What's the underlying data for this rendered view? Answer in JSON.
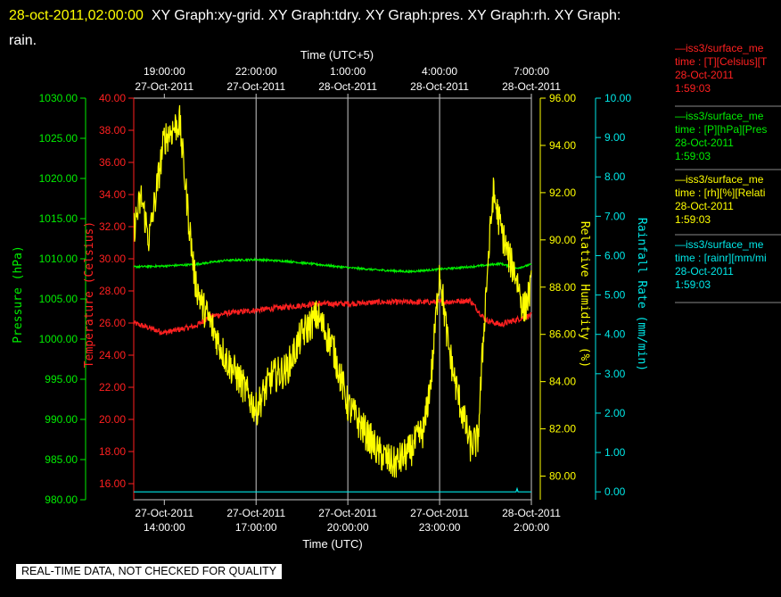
{
  "header": {
    "timestamp": "28-oct-2011,02:00:00",
    "graphs_line1": "XY Graph:xy-grid.  XY Graph:tdry.  XY Graph:pres.  XY Graph:rh.  XY Graph:",
    "graphs_line2": "rain."
  },
  "colors": {
    "temperature": "#ff2020",
    "pressure": "#00ee00",
    "humidity": "#ffff00",
    "rain": "#00e8e8",
    "grid": "#c8c8c8",
    "axis_text": "#ffffff"
  },
  "legend": [
    {
      "series": "—iss3/surface_me",
      "desc": "time : [T][Celsius][T",
      "date": "28-Oct-2011",
      "time": "1:59:03",
      "color": "#ff2020"
    },
    {
      "series": "—iss3/surface_me",
      "desc": "time : [P][hPa][Pres",
      "date": "28-Oct-2011",
      "time": "1:59:03",
      "color": "#00ee00"
    },
    {
      "series": "—iss3/surface_me",
      "desc": "time : [rh][%][Relati",
      "date": "28-Oct-2011",
      "time": "1:59:03",
      "color": "#ffff00"
    },
    {
      "series": "—iss3/surface_me",
      "desc": "time : [rainr][mm/mi",
      "date": "28-Oct-2011",
      "time": "1:59:03",
      "color": "#00e8e8"
    }
  ],
  "notice": "REAL-TIME DATA, NOT CHECKED FOR QUALITY",
  "chart_data": {
    "type": "line",
    "grid": true,
    "x_top": {
      "label": "Time (UTC+5)",
      "ticks": [
        {
          "time": "19:00:00",
          "date": "27-Oct-2011"
        },
        {
          "time": "22:00:00",
          "date": "27-Oct-2011"
        },
        {
          "time": "1:00:00",
          "date": "28-Oct-2011"
        },
        {
          "time": "4:00:00",
          "date": "28-Oct-2011"
        },
        {
          "time": "7:00:00",
          "date": "28-Oct-2011"
        }
      ]
    },
    "x_bottom": {
      "label": "Time (UTC)",
      "ticks": [
        {
          "date": "27-Oct-2011",
          "time": "14:00:00"
        },
        {
          "date": "27-Oct-2011",
          "time": "17:00:00"
        },
        {
          "date": "27-Oct-2011",
          "time": "20:00:00"
        },
        {
          "date": "27-Oct-2011",
          "time": "23:00:00"
        },
        {
          "date": "28-Oct-2011",
          "time": "2:00:00"
        }
      ]
    },
    "xlim_hours_utc": [
      13,
      2
    ],
    "y_axes": [
      {
        "id": "pressure",
        "label": "Pressure (hPa)",
        "range": [
          980,
          1030
        ],
        "ticks": [
          "980.00",
          "985.00",
          "990.00",
          "995.00",
          "1000.00",
          "1005.00",
          "1010.00",
          "1015.00",
          "1020.00",
          "1025.00",
          "1030.00"
        ]
      },
      {
        "id": "temperature",
        "label": "Temperature (Celsius)",
        "range": [
          15,
          40
        ],
        "ticks": [
          "16.00",
          "18.00",
          "20.00",
          "22.00",
          "24.00",
          "26.00",
          "28.00",
          "30.00",
          "32.00",
          "34.00",
          "36.00",
          "38.00",
          "40.00"
        ]
      },
      {
        "id": "humidity",
        "label": "Relative Humidity (%)",
        "range": [
          79,
          96
        ],
        "ticks": [
          "80.00",
          "82.00",
          "84.00",
          "86.00",
          "88.00",
          "90.00",
          "92.00",
          "94.00",
          "96.00"
        ]
      },
      {
        "id": "rain",
        "label": "Rainfall Rate (mm/min)",
        "range": [
          -0.2,
          10
        ],
        "ticks": [
          "0.00",
          "1.00",
          "2.00",
          "3.00",
          "4.00",
          "5.00",
          "6.00",
          "7.00",
          "8.00",
          "9.00",
          "10.00"
        ]
      }
    ],
    "series": [
      {
        "name": "iss3/surface_me",
        "axis": "temperature",
        "x": [
          "27-Oct 13:00",
          "27-Oct 14:00",
          "27-Oct 15:00",
          "27-Oct 15:30",
          "27-Oct 16:00",
          "27-Oct 17:00",
          "27-Oct 18:00",
          "27-Oct 19:00",
          "27-Oct 20:00",
          "27-Oct 21:00",
          "27-Oct 22:00",
          "27-Oct 23:00",
          "28-Oct 00:00",
          "28-Oct 00:30",
          "28-Oct 01:00",
          "28-Oct 02:00"
        ],
        "values": [
          26.0,
          25.4,
          25.8,
          26.4,
          26.6,
          26.8,
          27.0,
          27.2,
          27.2,
          27.3,
          27.3,
          27.3,
          27.4,
          26.2,
          25.9,
          26.5
        ]
      },
      {
        "name": "iss3/surface_me",
        "axis": "pressure",
        "x": [
          "27-Oct 13:00",
          "27-Oct 14:00",
          "27-Oct 15:00",
          "27-Oct 16:00",
          "27-Oct 17:00",
          "27-Oct 18:00",
          "27-Oct 19:00",
          "27-Oct 20:00",
          "27-Oct 21:00",
          "27-Oct 22:00",
          "27-Oct 23:00",
          "28-Oct 00:00",
          "28-Oct 01:00",
          "28-Oct 01:30",
          "28-Oct 02:00"
        ],
        "values": [
          1009.0,
          1009.1,
          1009.3,
          1009.8,
          1009.9,
          1009.7,
          1009.3,
          1008.9,
          1008.6,
          1008.4,
          1008.7,
          1009.0,
          1009.4,
          1008.8,
          1009.3
        ]
      },
      {
        "name": "iss3/surface_me",
        "axis": "humidity",
        "x": [
          "27-Oct 13:00",
          "27-Oct 13:15",
          "27-Oct 13:30",
          "27-Oct 14:00",
          "27-Oct 14:30",
          "27-Oct 14:45",
          "27-Oct 15:00",
          "27-Oct 15:15",
          "27-Oct 15:30",
          "27-Oct 16:00",
          "27-Oct 16:30",
          "27-Oct 17:00",
          "27-Oct 17:30",
          "27-Oct 18:00",
          "27-Oct 18:30",
          "27-Oct 19:00",
          "27-Oct 19:30",
          "27-Oct 20:00",
          "27-Oct 20:30",
          "27-Oct 21:00",
          "27-Oct 21:30",
          "27-Oct 22:00",
          "27-Oct 22:30",
          "27-Oct 22:45",
          "27-Oct 23:00",
          "27-Oct 23:15",
          "27-Oct 23:30",
          "27-Oct 24:00",
          "28-Oct 00:15",
          "28-Oct 00:30",
          "28-Oct 00:45",
          "28-Oct 01:00",
          "28-Oct 01:15",
          "28-Oct 01:30",
          "28-Oct 01:45",
          "28-Oct 02:00"
        ],
        "values": [
          90.5,
          91.8,
          90.0,
          94.3,
          95.0,
          91.5,
          88.3,
          87.2,
          86.5,
          85.0,
          84.0,
          82.8,
          84.2,
          84.5,
          86.0,
          86.8,
          85.5,
          83.0,
          82.0,
          81.0,
          80.5,
          81.0,
          82.0,
          84.5,
          88.8,
          85.8,
          84.0,
          81.3,
          81.5,
          87.5,
          92.0,
          90.5,
          89.3,
          88.5,
          87.0,
          88.0
        ]
      },
      {
        "name": "iss3/surface_me",
        "axis": "rain",
        "x": [
          "27-Oct 13:00",
          "28-Oct 01:30",
          "28-Oct 01:32",
          "28-Oct 01:34",
          "28-Oct 02:00"
        ],
        "values": [
          0.0,
          0.0,
          0.08,
          0.0,
          0.0
        ]
      }
    ]
  }
}
